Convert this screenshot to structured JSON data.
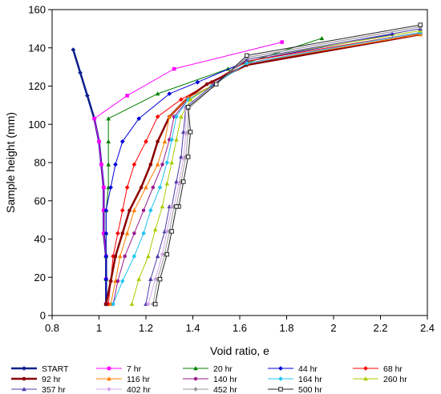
{
  "chart_data": {
    "type": "line",
    "title": "",
    "xlabel": "Void ratio, e",
    "ylabel": "Sample height (mm)",
    "xlim": [
      0.8,
      2.4
    ],
    "ylim": [
      0,
      160
    ],
    "xticks": [
      0.8,
      1.0,
      1.2,
      1.4,
      1.6,
      1.8,
      2.0,
      2.2,
      2.4
    ],
    "yticks": [
      0,
      20,
      40,
      60,
      80,
      100,
      120,
      140,
      160
    ],
    "xtick_labels": [
      "0.8",
      "1",
      "1.2",
      "1.4",
      "1.6",
      "1.8",
      "2",
      "2.2",
      "2.4"
    ],
    "ytick_labels": [
      "0",
      "20",
      "40",
      "60",
      "80",
      "100",
      "120",
      "140",
      "160"
    ],
    "grid": false,
    "legend_position": "bottom",
    "series": [
      {
        "name": "START",
        "color": "#0A1E8C",
        "marker": "diamond",
        "width": 2.5,
        "x": [
          0.89,
          0.92,
          0.95,
          0.98,
          1.0,
          1.01,
          1.02,
          1.02,
          1.02,
          1.03,
          1.03,
          1.03
        ],
        "y": [
          139,
          127,
          115,
          103,
          91,
          79,
          67,
          55,
          43,
          31,
          19,
          6
        ]
      },
      {
        "name": "7 hr",
        "color": "#FF00FF",
        "marker": "square",
        "width": 1,
        "x": [
          1.78,
          1.32,
          1.12,
          0.98,
          1.0,
          1.01,
          1.02,
          1.02,
          1.02,
          1.03,
          1.03,
          1.03
        ],
        "y": [
          143,
          129,
          115,
          103,
          91,
          79,
          67,
          55,
          43,
          31,
          19,
          6
        ]
      },
      {
        "name": "20 hr",
        "color": "#008000",
        "marker": "triangle",
        "width": 1,
        "x": [
          1.95,
          1.55,
          1.25,
          1.04,
          1.04,
          1.04,
          1.04,
          1.03,
          1.03,
          1.03,
          1.03,
          1.03
        ],
        "y": [
          145,
          129,
          116,
          103,
          91,
          79,
          67,
          55,
          43,
          31,
          19,
          6
        ]
      },
      {
        "name": "44 hr",
        "color": "#0000DD",
        "marker": "diamond",
        "width": 1,
        "x": [
          2.25,
          1.63,
          1.42,
          1.3,
          1.17,
          1.1,
          1.07,
          1.05,
          1.03,
          1.03,
          1.03,
          1.03,
          1.03
        ],
        "y": [
          147,
          133,
          122,
          116,
          103,
          91,
          79,
          67,
          55,
          43,
          31,
          19,
          6
        ]
      },
      {
        "name": "68 hr",
        "color": "#FF0000",
        "marker": "diamond",
        "width": 1,
        "x": [
          2.37,
          1.63,
          1.48,
          1.35,
          1.25,
          1.2,
          1.15,
          1.12,
          1.1,
          1.08,
          1.06,
          1.05,
          1.04
        ],
        "y": [
          148,
          133,
          122,
          113,
          104,
          91,
          79,
          67,
          55,
          43,
          31,
          18,
          6
        ]
      },
      {
        "name": "92 hr",
        "color": "#8B0000",
        "marker": "circle",
        "width": 2.5,
        "x": [
          2.37,
          1.63,
          1.46,
          1.38,
          1.3,
          1.25,
          1.22,
          1.18,
          1.13,
          1.1,
          1.07,
          1.05,
          1.03,
          1.03
        ],
        "y": [
          147,
          131,
          121,
          114,
          104,
          91,
          79,
          67,
          55,
          43,
          31,
          18,
          6,
          6
        ]
      },
      {
        "name": "116 hr",
        "color": "#FF7F00",
        "marker": "triangle",
        "width": 1,
        "x": [
          2.37,
          1.63,
          1.48,
          1.38,
          1.3,
          1.28,
          1.25,
          1.2,
          1.15,
          1.12,
          1.09,
          1.07,
          1.05
        ],
        "y": [
          147,
          132,
          120,
          114,
          104,
          91,
          79,
          67,
          55,
          43,
          31,
          18,
          6
        ]
      },
      {
        "name": "140 hr",
        "color": "#9B1B8E",
        "marker": "circle",
        "width": 1,
        "x": [
          2.37,
          1.63,
          1.48,
          1.38,
          1.32,
          1.3,
          1.27,
          1.23,
          1.19,
          1.15,
          1.11,
          1.08,
          1.06
        ],
        "y": [
          148,
          132,
          120,
          113,
          104,
          92,
          79,
          67,
          55,
          43,
          31,
          18,
          6
        ]
      },
      {
        "name": "164 hr",
        "color": "#22C4F0",
        "marker": "diamond",
        "width": 1,
        "x": [
          2.37,
          1.63,
          1.48,
          1.38,
          1.33,
          1.31,
          1.29,
          1.26,
          1.22,
          1.19,
          1.15,
          1.1,
          1.06
        ],
        "y": [
          148,
          132,
          120,
          113,
          104,
          92,
          80,
          67,
          55,
          43,
          31,
          18,
          6
        ]
      },
      {
        "name": "260 hr",
        "color": "#AACC00",
        "marker": "triangle",
        "width": 1,
        "x": [
          2.37,
          1.63,
          1.49,
          1.39,
          1.35,
          1.33,
          1.31,
          1.29,
          1.27,
          1.24,
          1.21,
          1.17,
          1.14
        ],
        "y": [
          149,
          134,
          121,
          113,
          104,
          92,
          80,
          69,
          57,
          45,
          31,
          19,
          6
        ]
      },
      {
        "name": "357 hr",
        "color": "#4B3BA8",
        "marker": "triangle",
        "width": 1,
        "x": [
          2.37,
          1.63,
          1.49,
          1.37,
          1.36,
          1.35,
          1.33,
          1.31,
          1.3,
          1.28,
          1.25,
          1.22,
          1.2
        ],
        "y": [
          150,
          134,
          121,
          109,
          96,
          83,
          70,
          57,
          57,
          44,
          31,
          19,
          6
        ]
      },
      {
        "name": "402 hr",
        "color": "#D5A8E8",
        "marker": "diamond",
        "width": 1,
        "x": [
          2.37,
          1.63,
          1.5,
          1.37,
          1.37,
          1.36,
          1.34,
          1.32,
          1.31,
          1.29,
          1.27,
          1.24,
          1.21
        ],
        "y": [
          151,
          135,
          121,
          108,
          95,
          82,
          69,
          57,
          57,
          44,
          32,
          19,
          6
        ]
      },
      {
        "name": "452 hr",
        "color": "#999999",
        "marker": "diamond",
        "width": 1,
        "x": [
          2.37,
          1.63,
          1.5,
          1.38,
          1.38,
          1.37,
          1.35,
          1.33,
          1.32,
          1.3,
          1.28,
          1.25,
          1.23
        ],
        "y": [
          151,
          135,
          121,
          108,
          96,
          83,
          70,
          57,
          57,
          44,
          32,
          19,
          6
        ]
      },
      {
        "name": "500 hr",
        "color": "#222222",
        "marker": "square-open",
        "width": 1,
        "x": [
          2.37,
          1.63,
          1.5,
          1.38,
          1.39,
          1.38,
          1.36,
          1.34,
          1.33,
          1.31,
          1.29,
          1.26,
          1.24
        ],
        "y": [
          152,
          136,
          121,
          109,
          96,
          83,
          70,
          57,
          57,
          44,
          32,
          19,
          6
        ]
      }
    ]
  }
}
